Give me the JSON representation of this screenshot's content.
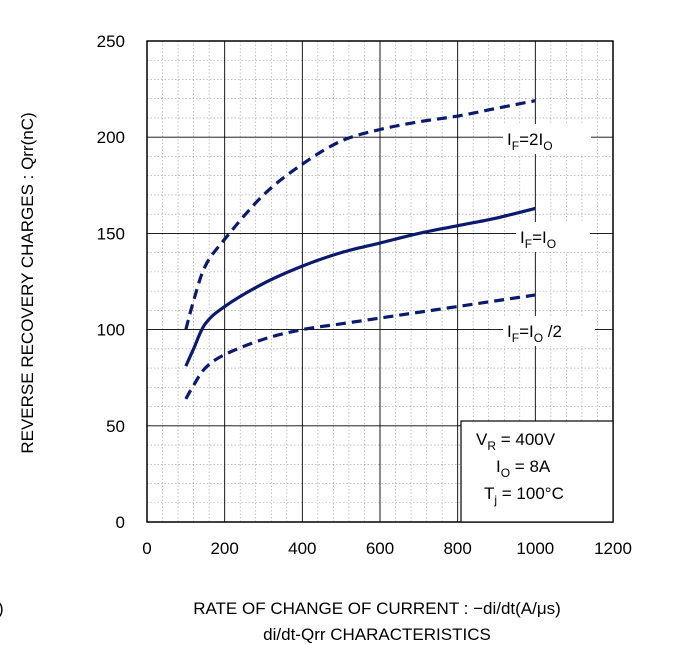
{
  "chart_data": {
    "type": "line",
    "title": "di/dt-Qrr CHARACTERISTICS",
    "xlabel": "RATE OF CHANGE OF CURRENT : −di/dt(A/μs)",
    "ylabel": "REVERSE RECOVERY  CHARGES : Qrr(nC)",
    "xlim": [
      0,
      1200
    ],
    "ylim": [
      0,
      250
    ],
    "xticks": [
      0,
      200,
      400,
      600,
      800,
      1000,
      1200
    ],
    "yticks": [
      0,
      50,
      100,
      150,
      200,
      250
    ],
    "grid": true,
    "left_edge_char": ")",
    "series": [
      {
        "label_main": "I",
        "label_sub1": "F",
        "label_mid": "=2I",
        "label_sub2": "O",
        "label_tail": "",
        "style": "dashed",
        "x": [
          100,
          120,
          150,
          200,
          300,
          400,
          500,
          600,
          700,
          800,
          900,
          1000
        ],
        "y": [
          100,
          115,
          133,
          147,
          170,
          186,
          198,
          204,
          208,
          211,
          215,
          219
        ]
      },
      {
        "label_main": "I",
        "label_sub1": "F",
        "label_mid": "=I",
        "label_sub2": "O",
        "label_tail": "",
        "style": "solid",
        "x": [
          100,
          120,
          150,
          200,
          300,
          400,
          500,
          600,
          700,
          800,
          900,
          1000
        ],
        "y": [
          81,
          90,
          103,
          112,
          124,
          133,
          140,
          145,
          150,
          154,
          158,
          163
        ]
      },
      {
        "label_main": "I",
        "label_sub1": "F",
        "label_mid": "=I",
        "label_sub2": "O",
        "label_tail": " /2",
        "style": "dashed",
        "x": [
          100,
          120,
          150,
          200,
          300,
          400,
          500,
          600,
          700,
          800,
          900,
          1000
        ],
        "y": [
          64,
          71,
          80,
          87,
          95,
          100,
          103,
          106,
          109,
          112,
          115,
          118
        ]
      }
    ],
    "conditions": [
      {
        "main": "V",
        "sub": "R",
        "rest": " = 400V"
      },
      {
        "main": "I",
        "sub": "O",
        "rest": " = 8A"
      },
      {
        "main": "T",
        "sub": "j",
        "rest": " = 100°C"
      }
    ],
    "line_color": "#0a1a6e"
  }
}
